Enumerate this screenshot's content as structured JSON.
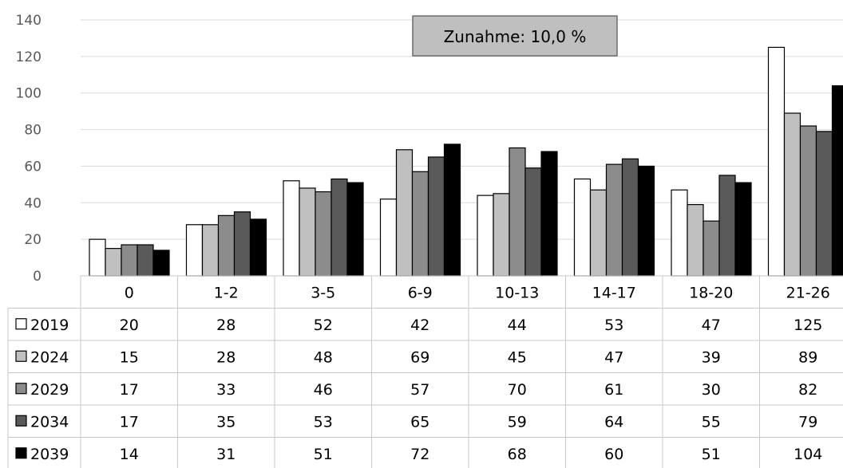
{
  "chart_data": {
    "type": "bar",
    "annotation": "Zunahme: 10,0 %",
    "categories": [
      "0",
      "1-2",
      "3-5",
      "6-9",
      "10-13",
      "14-17",
      "18-20",
      "21-26"
    ],
    "ylim": [
      0,
      140
    ],
    "yticks": [
      0,
      20,
      40,
      60,
      80,
      100,
      120,
      140
    ],
    "grid": true,
    "legend": "data-table-left",
    "series": [
      {
        "name": "2019",
        "color": "#ffffff",
        "values": [
          20,
          28,
          52,
          42,
          44,
          53,
          47,
          125
        ]
      },
      {
        "name": "2024",
        "color": "#c0c0c0",
        "values": [
          15,
          28,
          48,
          69,
          45,
          47,
          39,
          89
        ]
      },
      {
        "name": "2029",
        "color": "#8c8c8c",
        "values": [
          17,
          33,
          46,
          57,
          70,
          61,
          30,
          82
        ]
      },
      {
        "name": "2034",
        "color": "#5a5a5a",
        "values": [
          17,
          35,
          53,
          65,
          59,
          64,
          55,
          79
        ]
      },
      {
        "name": "2039",
        "color": "#000000",
        "values": [
          14,
          31,
          51,
          72,
          68,
          60,
          51,
          104
        ]
      }
    ]
  }
}
